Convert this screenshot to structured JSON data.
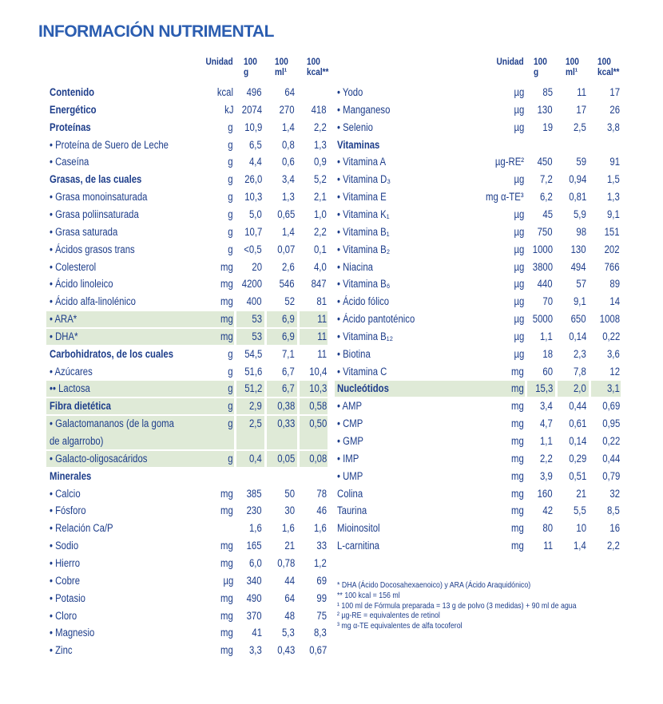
{
  "title": "INFORMACIÓN NUTRIMENTAL",
  "left": {
    "header": [
      "Unidad",
      [
        "100",
        "g"
      ],
      [
        "100",
        "ml¹"
      ],
      [
        "100",
        "kcal**"
      ]
    ],
    "rows": [
      {
        "label": [
          "Contenido"
        ],
        "bold": true,
        "unit": "kcal",
        "values": [
          "496",
          "64"
        ]
      },
      {
        "label": [
          "Energético"
        ],
        "bold": true,
        "unit": "kJ",
        "values": [
          "2074",
          "270",
          "418"
        ]
      },
      {
        "label": [
          "Proteínas"
        ],
        "bold": true,
        "unit": "g",
        "values": [
          "10,9",
          "1,4",
          "2,2"
        ]
      },
      {
        "label": [
          "• Proteína de Suero de Leche"
        ],
        "unit": "g",
        "values": [
          "6,5",
          "0,8",
          "1,3"
        ]
      },
      {
        "label": [
          "• Caseína"
        ],
        "unit": "g",
        "values": [
          "4,4",
          "0,6",
          "0,9"
        ]
      },
      {
        "label": [
          "Grasas, de las cuales"
        ],
        "bold": true,
        "unit": "g",
        "values": [
          "26,0",
          "3,4",
          "5,2"
        ]
      },
      {
        "label": [
          "• Grasa monoinsaturada"
        ],
        "unit": "g",
        "values": [
          "10,3",
          "1,3",
          "2,1"
        ]
      },
      {
        "label": [
          "• Grasa poliinsaturada"
        ],
        "unit": "g",
        "values": [
          "5,0",
          "0,65",
          "1,0"
        ]
      },
      {
        "label": [
          "• Grasa saturada"
        ],
        "unit": "g",
        "values": [
          "10,7",
          "1,4",
          "2,2"
        ]
      },
      {
        "label": [
          "• Ácidos grasos trans"
        ],
        "unit": "g",
        "values": [
          "<0,5",
          "0,07",
          "0,1"
        ]
      },
      {
        "label": [
          "• Colesterol"
        ],
        "unit": "mg",
        "values": [
          "20",
          "2,6",
          "4,0"
        ]
      },
      {
        "label": [
          "• Ácido linoleico"
        ],
        "unit": "mg",
        "values": [
          "4200",
          "546",
          "847"
        ]
      },
      {
        "label": [
          "• Ácido alfa-linolénico"
        ],
        "unit": "mg",
        "values": [
          "400",
          "52",
          "81"
        ]
      },
      {
        "label": [
          "• ARA*"
        ],
        "unit": "mg",
        "values": [
          "53",
          "6,9",
          "11"
        ],
        "highlight": true
      },
      {
        "label": [
          "• DHA*"
        ],
        "unit": "mg",
        "values": [
          "53",
          "6,9",
          "11"
        ],
        "highlight": true
      },
      {
        "label": [
          "Carbohidratos, de los cuales"
        ],
        "bold": true,
        "unit": "g",
        "values": [
          "54,5",
          "7,1",
          "11"
        ]
      },
      {
        "label": [
          "• Azúcares"
        ],
        "unit": "g",
        "values": [
          "51,6",
          "6,7",
          "10,4"
        ]
      },
      {
        "label": [
          "•• Lactosa"
        ],
        "unit": "g",
        "values": [
          "51,2",
          "6,7",
          "10,3"
        ],
        "highlight": true
      },
      {
        "label": [
          "Fibra dietética"
        ],
        "bold": true,
        "unit": "g",
        "values": [
          "2,9",
          "0,38",
          "0,58"
        ],
        "highlight": true
      },
      {
        "label": [
          "• Galactomananos (de la goma",
          "de algarrobo)"
        ],
        "unit": "g",
        "values": [
          "2,5",
          "0,33",
          "0,50"
        ],
        "highlight": true
      },
      {
        "label": [
          "• Galacto-oligosacáridos"
        ],
        "unit": "g",
        "values": [
          "0,4",
          "0,05",
          "0,08"
        ],
        "highlight": true
      },
      {
        "label": [
          "Minerales"
        ],
        "bold": true
      },
      {
        "label": [
          "• Calcio"
        ],
        "unit": "mg",
        "values": [
          "385",
          "50",
          "78"
        ]
      },
      {
        "label": [
          "• Fósforo"
        ],
        "unit": "mg",
        "values": [
          "230",
          "30",
          "46"
        ]
      },
      {
        "label": [
          "• Relación Ca/P"
        ],
        "values": [
          "1,6",
          "1,6",
          "1,6"
        ]
      },
      {
        "label": [
          "• Sodio"
        ],
        "unit": "mg",
        "values": [
          "165",
          "21",
          "33"
        ]
      },
      {
        "label": [
          "• Hierro"
        ],
        "unit": "mg",
        "values": [
          "6,0",
          "0,78",
          "1,2"
        ]
      },
      {
        "label": [
          "• Cobre"
        ],
        "unit": "µg",
        "values": [
          "340",
          "44",
          "69"
        ]
      },
      {
        "label": [
          "• Potasio"
        ],
        "unit": "mg",
        "values": [
          "490",
          "64",
          "99"
        ]
      },
      {
        "label": [
          "• Cloro"
        ],
        "unit": "mg",
        "values": [
          "370",
          "48",
          "75"
        ]
      },
      {
        "label": [
          "• Magnesio"
        ],
        "unit": "mg",
        "values": [
          "41",
          "5,3",
          "8,3"
        ]
      },
      {
        "label": [
          "• Zinc"
        ],
        "unit": "mg",
        "values": [
          "3,3",
          "0,43",
          "0,67"
        ]
      }
    ]
  },
  "right": {
    "header": [
      "Unidad",
      [
        "100",
        "g"
      ],
      [
        "100",
        "ml¹"
      ],
      [
        "100",
        "kcal**"
      ]
    ],
    "rows": [
      {
        "label": [
          "• Yodo"
        ],
        "unit": "µg",
        "values": [
          "85",
          "11",
          "17"
        ]
      },
      {
        "label": [
          "• Manganeso"
        ],
        "unit": "µg",
        "values": [
          "130",
          "17",
          "26"
        ]
      },
      {
        "label": [
          "• Selenio"
        ],
        "unit": "µg",
        "values": [
          "19",
          "2,5",
          "3,8"
        ]
      },
      {
        "label": [
          "Vitaminas"
        ],
        "bold": true
      },
      {
        "label": [
          "• Vitamina A"
        ],
        "unit": "µg-RE²",
        "values": [
          "450",
          "59",
          "91"
        ]
      },
      {
        "label": [
          "• Vitamina D₃"
        ],
        "unit": "µg",
        "values": [
          "7,2",
          "0,94",
          "1,5"
        ]
      },
      {
        "label": [
          "• Vitamina E"
        ],
        "unit": "mg α-TE³",
        "values": [
          "6,2",
          "0,81",
          "1,3"
        ]
      },
      {
        "label": [
          "• Vitamina K₁"
        ],
        "unit": "µg",
        "values": [
          "45",
          "5,9",
          "9,1"
        ]
      },
      {
        "label": [
          "• Vitamina B₁"
        ],
        "unit": "µg",
        "values": [
          "750",
          "98",
          "151"
        ]
      },
      {
        "label": [
          "• Vitamina B₂"
        ],
        "unit": "µg",
        "values": [
          "1000",
          "130",
          "202"
        ]
      },
      {
        "label": [
          "• Niacina"
        ],
        "unit": "µg",
        "values": [
          "3800",
          "494",
          "766"
        ]
      },
      {
        "label": [
          "• Vitamina B₆"
        ],
        "unit": "µg",
        "values": [
          "440",
          "57",
          "89"
        ]
      },
      {
        "label": [
          "• Ácido fólico"
        ],
        "unit": "µg",
        "values": [
          "70",
          "9,1",
          "14"
        ]
      },
      {
        "label": [
          "• Ácido pantoténico"
        ],
        "unit": "µg",
        "values": [
          "5000",
          "650",
          "1008"
        ]
      },
      {
        "label": [
          "• Vitamina B₁₂"
        ],
        "unit": "µg",
        "values": [
          "1,1",
          "0,14",
          "0,22"
        ]
      },
      {
        "label": [
          "• Biotina"
        ],
        "unit": "µg",
        "values": [
          "18",
          "2,3",
          "3,6"
        ]
      },
      {
        "label": [
          "• Vitamina C"
        ],
        "unit": "mg",
        "values": [
          "60",
          "7,8",
          "12"
        ]
      },
      {
        "label": [
          "Nucleótidos"
        ],
        "bold": true,
        "unit": "mg",
        "values": [
          "15,3",
          "2,0",
          "3,1"
        ],
        "highlight": true
      },
      {
        "label": [
          "• AMP"
        ],
        "unit": "mg",
        "values": [
          "3,4",
          "0,44",
          "0,69"
        ]
      },
      {
        "label": [
          "• CMP"
        ],
        "unit": "mg",
        "values": [
          "4,7",
          "0,61",
          "0,95"
        ]
      },
      {
        "label": [
          "• GMP"
        ],
        "unit": "mg",
        "values": [
          "1,1",
          "0,14",
          "0,22"
        ]
      },
      {
        "label": [
          "• IMP"
        ],
        "unit": "mg",
        "values": [
          "2,2",
          "0,29",
          "0,44"
        ]
      },
      {
        "label": [
          "• UMP"
        ],
        "unit": "mg",
        "values": [
          "3,9",
          "0,51",
          "0,79"
        ]
      },
      {
        "label": [
          "Colina"
        ],
        "unit": "mg",
        "values": [
          "160",
          "21",
          "32"
        ]
      },
      {
        "label": [
          "Taurina"
        ],
        "unit": "mg",
        "values": [
          "42",
          "5,5",
          "8,5"
        ]
      },
      {
        "label": [
          "Mioinositol"
        ],
        "unit": "mg",
        "values": [
          "80",
          "10",
          "16"
        ]
      },
      {
        "label": [
          "L-carnitina"
        ],
        "unit": "mg",
        "values": [
          "11",
          "1,4",
          "2,2"
        ]
      }
    ]
  },
  "footnotes": [
    "* DHA (Ácido Docosahexaenoico) y ARA (Ácido Araquidónico)",
    "** 100 kcal = 156 ml",
    "¹ 100 ml de Fórmula preparada = 13 g de polvo (3 medidas) + 90 ml de agua",
    "² µg-RE = equivalentes de retinol",
    "³ mg α-TE equivalentes de alfa tocoferol"
  ]
}
